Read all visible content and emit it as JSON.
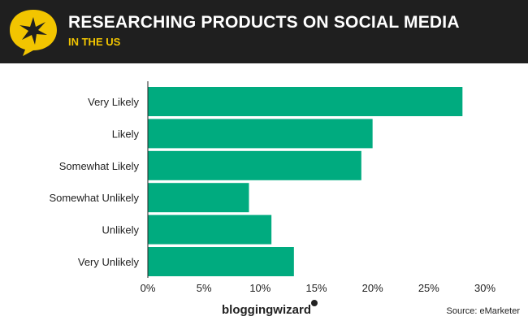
{
  "header": {
    "title": "RESEARCHING PRODUCTS ON SOCIAL MEDIA",
    "subtitle": "IN THE US"
  },
  "colors": {
    "bar": "#00ab7f",
    "header_bg": "#1f1f1f",
    "accent": "#f2c500",
    "axis": "#222222"
  },
  "chart_data": {
    "type": "bar",
    "orientation": "horizontal",
    "title": "RESEARCHING PRODUCTS ON SOCIAL MEDIA",
    "subtitle": "IN THE US",
    "categories": [
      "Very Likely",
      "Likely",
      "Somewhat Likely",
      "Somewhat Unlikely",
      "Unlikely",
      "Very Unlikely"
    ],
    "values": [
      28,
      20,
      19,
      9,
      11,
      13
    ],
    "xlim": [
      0,
      30
    ],
    "xticks": [
      "0%",
      "5%",
      "10%",
      "15%",
      "20%",
      "25%",
      "30%"
    ],
    "xlabel": "",
    "ylabel": "",
    "grid": false
  },
  "footer": {
    "brand": "bloggingwizard",
    "source": "Source: eMarketer"
  }
}
